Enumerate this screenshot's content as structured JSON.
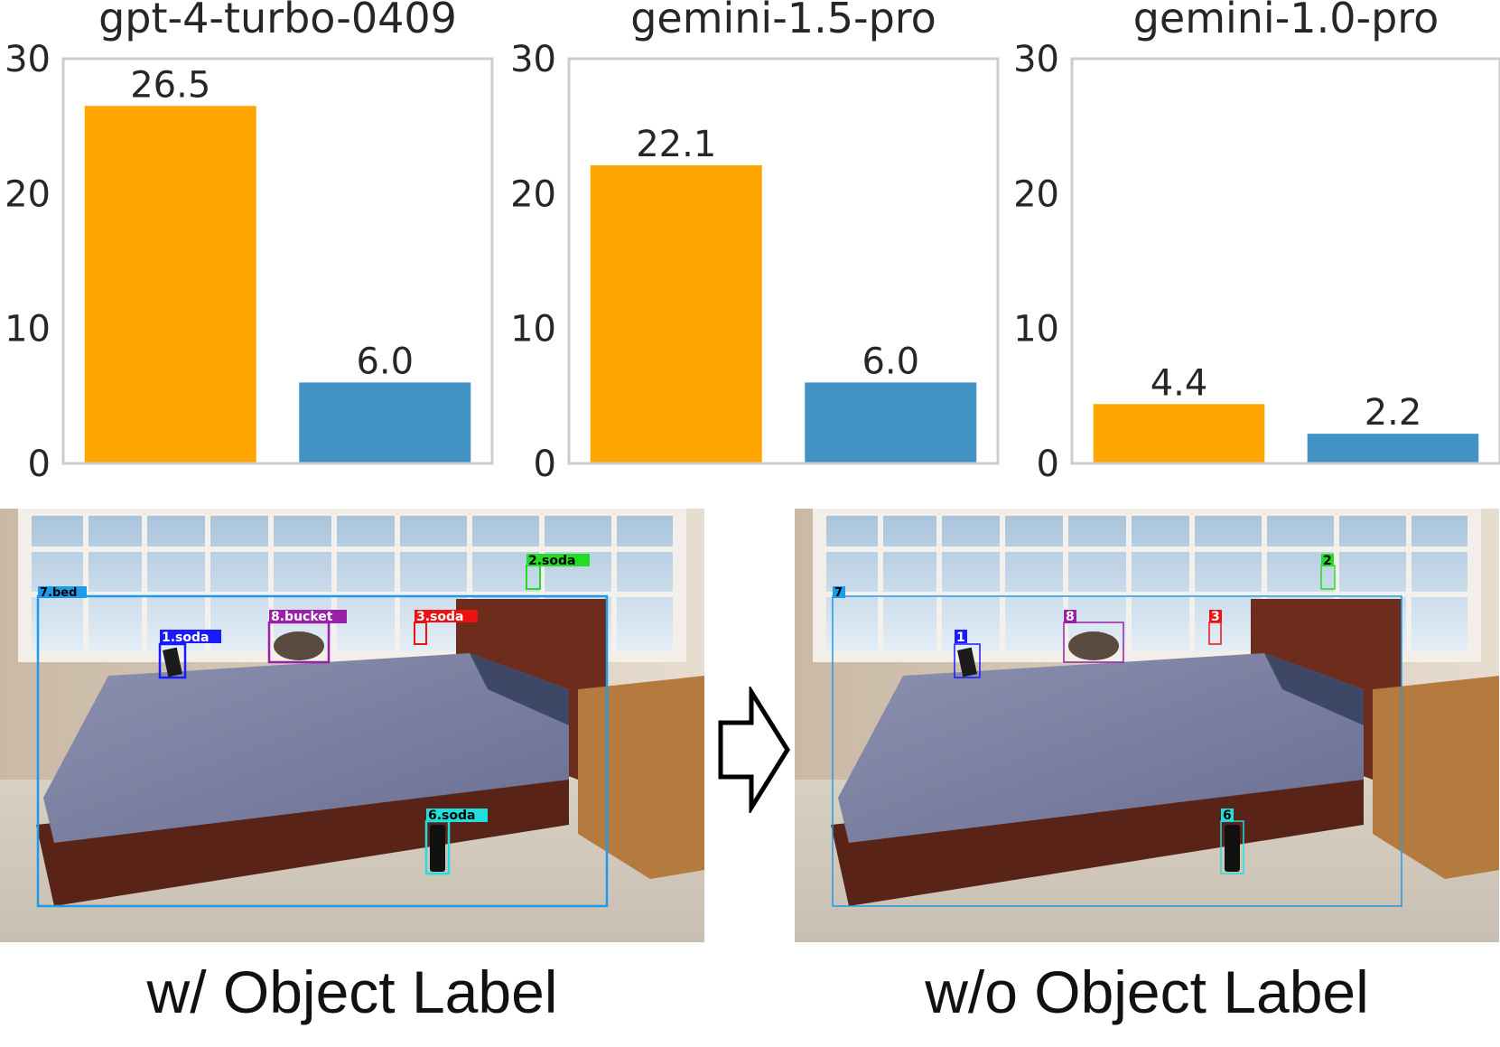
{
  "chart_data": [
    {
      "type": "bar",
      "title": "gpt-4-turbo-0409",
      "categories": [
        "w/ Object Label",
        "w/o Object Label"
      ],
      "values": [
        26.5,
        6.0
      ],
      "value_labels": [
        "26.5",
        "6.0"
      ],
      "colors": [
        "#ffa500",
        "#4292c6"
      ],
      "ylim": [
        0,
        30
      ],
      "yticks": [
        "0",
        "10",
        "20",
        "30"
      ],
      "xlabel": "",
      "ylabel": "",
      "grid": false
    },
    {
      "type": "bar",
      "title": "gemini-1.5-pro",
      "categories": [
        "w/ Object Label",
        "w/o Object Label"
      ],
      "values": [
        22.1,
        6.0
      ],
      "value_labels": [
        "22.1",
        "6.0"
      ],
      "colors": [
        "#ffa500",
        "#4292c6"
      ],
      "ylim": [
        0,
        30
      ],
      "yticks": [
        "0",
        "10",
        "20",
        "30"
      ],
      "xlabel": "",
      "ylabel": "",
      "grid": false
    },
    {
      "type": "bar",
      "title": "gemini-1.0-pro",
      "categories": [
        "w/ Object Label",
        "w/o Object Label"
      ],
      "values": [
        4.4,
        2.2
      ],
      "value_labels": [
        "4.4",
        "2.2"
      ],
      "colors": [
        "#ffa500",
        "#4292c6"
      ],
      "ylim": [
        0,
        30
      ],
      "yticks": [
        "0",
        "10",
        "20",
        "30"
      ],
      "xlabel": "",
      "ylabel": "",
      "grid": false
    }
  ],
  "captions": {
    "left": "w/ Object Label",
    "right": "w/o Object Label"
  },
  "scene_left_labels": [
    "1.soda",
    "2.soda",
    "3.soda",
    "6.soda",
    "7.bed",
    "8.bucket"
  ],
  "scene_right_labels": [
    "1",
    "2",
    "3",
    "6",
    "7",
    "8"
  ],
  "label_colors": {
    "1": "#1a1aff",
    "2": "#22dd22",
    "3": "#ee1111",
    "6": "#22dddd",
    "7": "#1e9be8",
    "8": "#9b1fa8"
  }
}
